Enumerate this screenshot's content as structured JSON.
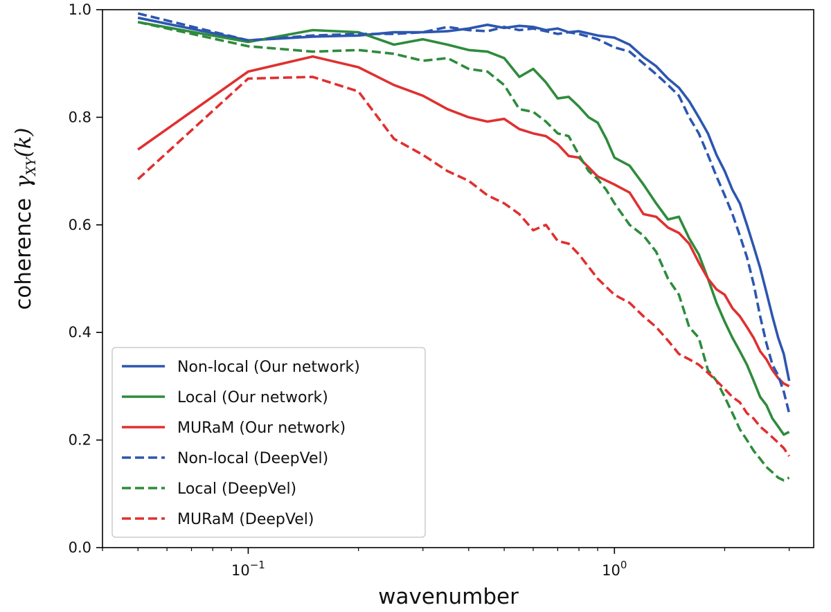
{
  "chart_data": {
    "type": "line",
    "xscale": "log",
    "xlabel": "wavenumber",
    "ylabel": "coherence",
    "ylabel_symbol": "γ",
    "ylabel_subscript": "XY",
    "ylabel_arg": "(k)",
    "xlim": [
      0.04,
      3.5
    ],
    "ylim": [
      0.0,
      1.0
    ],
    "y_ticks": [
      0.0,
      0.2,
      0.4,
      0.6,
      0.8,
      1.0
    ],
    "y_tick_labels": [
      "0.0",
      "0.2",
      "0.4",
      "0.6",
      "0.8",
      "1.0"
    ],
    "x_major_ticks": [
      {
        "value": 0.1,
        "base": "10",
        "exp": "−1"
      },
      {
        "value": 1,
        "base": "10",
        "exp": "0"
      }
    ],
    "x_minor_ticks": [
      0.04,
      0.05,
      0.06,
      0.07,
      0.08,
      0.09,
      0.2,
      0.3,
      0.4,
      0.5,
      0.6,
      0.7,
      0.8,
      0.9,
      2,
      3
    ],
    "legend_position": "lower-left",
    "series": [
      {
        "name": "Non-local (Our network)",
        "color": "#2c56b0",
        "dash": "solid",
        "x": [
          0.05,
          0.1,
          0.15,
          0.2,
          0.25,
          0.3,
          0.35,
          0.4,
          0.45,
          0.5,
          0.55,
          0.6,
          0.65,
          0.7,
          0.75,
          0.8,
          0.9,
          1.0,
          1.1,
          1.2,
          1.3,
          1.4,
          1.5,
          1.6,
          1.7,
          1.8,
          1.9,
          2.0,
          2.1,
          2.2,
          2.3,
          2.4,
          2.5,
          2.6,
          2.7,
          2.8,
          2.9,
          3.0
        ],
        "y": [
          0.985,
          0.943,
          0.95,
          0.952,
          0.958,
          0.958,
          0.96,
          0.965,
          0.972,
          0.966,
          0.97,
          0.968,
          0.962,
          0.965,
          0.958,
          0.96,
          0.952,
          0.948,
          0.935,
          0.912,
          0.895,
          0.872,
          0.855,
          0.83,
          0.8,
          0.77,
          0.73,
          0.7,
          0.665,
          0.64,
          0.6,
          0.56,
          0.52,
          0.475,
          0.43,
          0.39,
          0.36,
          0.31
        ]
      },
      {
        "name": "Local (Our network)",
        "color": "#2e8b3c",
        "dash": "solid",
        "x": [
          0.05,
          0.1,
          0.15,
          0.2,
          0.25,
          0.3,
          0.35,
          0.4,
          0.45,
          0.5,
          0.55,
          0.6,
          0.65,
          0.7,
          0.75,
          0.8,
          0.85,
          0.9,
          0.95,
          1.0,
          1.1,
          1.2,
          1.3,
          1.4,
          1.5,
          1.6,
          1.7,
          1.8,
          1.9,
          2.0,
          2.1,
          2.2,
          2.3,
          2.4,
          2.5,
          2.6,
          2.7,
          2.8,
          2.9,
          3.0
        ],
        "y": [
          0.977,
          0.94,
          0.962,
          0.958,
          0.935,
          0.945,
          0.935,
          0.925,
          0.922,
          0.91,
          0.875,
          0.89,
          0.865,
          0.835,
          0.838,
          0.82,
          0.8,
          0.79,
          0.76,
          0.725,
          0.71,
          0.675,
          0.64,
          0.61,
          0.615,
          0.575,
          0.545,
          0.5,
          0.455,
          0.42,
          0.39,
          0.365,
          0.34,
          0.31,
          0.28,
          0.265,
          0.24,
          0.225,
          0.21,
          0.215
        ]
      },
      {
        "name": "MURaM (Our network)",
        "color": "#e03030",
        "dash": "solid",
        "x": [
          0.05,
          0.1,
          0.15,
          0.2,
          0.25,
          0.3,
          0.35,
          0.4,
          0.45,
          0.5,
          0.55,
          0.6,
          0.65,
          0.7,
          0.75,
          0.8,
          0.9,
          1.0,
          1.1,
          1.2,
          1.3,
          1.4,
          1.5,
          1.6,
          1.7,
          1.8,
          1.9,
          2.0,
          2.1,
          2.2,
          2.3,
          2.4,
          2.5,
          2.6,
          2.7,
          2.8,
          2.9,
          3.0
        ],
        "y": [
          0.74,
          0.885,
          0.913,
          0.893,
          0.86,
          0.84,
          0.815,
          0.8,
          0.792,
          0.797,
          0.778,
          0.77,
          0.765,
          0.75,
          0.728,
          0.725,
          0.69,
          0.675,
          0.66,
          0.62,
          0.615,
          0.595,
          0.585,
          0.565,
          0.53,
          0.5,
          0.48,
          0.47,
          0.445,
          0.43,
          0.41,
          0.39,
          0.365,
          0.35,
          0.33,
          0.315,
          0.305,
          0.3
        ]
      },
      {
        "name": "Non-local (DeepVel)",
        "color": "#2c56b0",
        "dash": "dashed",
        "x": [
          0.05,
          0.1,
          0.15,
          0.2,
          0.25,
          0.3,
          0.35,
          0.4,
          0.45,
          0.5,
          0.55,
          0.6,
          0.65,
          0.7,
          0.75,
          0.8,
          0.9,
          1.0,
          1.1,
          1.2,
          1.3,
          1.4,
          1.5,
          1.6,
          1.7,
          1.8,
          1.9,
          2.0,
          2.1,
          2.2,
          2.3,
          2.4,
          2.5,
          2.6,
          2.7,
          2.8,
          2.9,
          3.0
        ],
        "y": [
          0.993,
          0.943,
          0.952,
          0.955,
          0.955,
          0.958,
          0.968,
          0.962,
          0.96,
          0.968,
          0.962,
          0.965,
          0.96,
          0.955,
          0.958,
          0.955,
          0.945,
          0.93,
          0.922,
          0.9,
          0.88,
          0.86,
          0.84,
          0.8,
          0.77,
          0.73,
          0.69,
          0.655,
          0.62,
          0.58,
          0.54,
          0.49,
          0.43,
          0.38,
          0.34,
          0.32,
          0.29,
          0.25
        ]
      },
      {
        "name": "Local (DeepVel)",
        "color": "#2e8b3c",
        "dash": "dashed",
        "x": [
          0.05,
          0.1,
          0.15,
          0.2,
          0.25,
          0.3,
          0.35,
          0.4,
          0.45,
          0.5,
          0.55,
          0.6,
          0.65,
          0.7,
          0.75,
          0.8,
          0.85,
          0.9,
          0.95,
          1.0,
          1.1,
          1.2,
          1.3,
          1.4,
          1.5,
          1.6,
          1.7,
          1.8,
          1.9,
          2.0,
          2.1,
          2.2,
          2.3,
          2.4,
          2.5,
          2.6,
          2.7,
          2.8,
          2.9,
          3.0
        ],
        "y": [
          0.977,
          0.932,
          0.922,
          0.925,
          0.918,
          0.905,
          0.91,
          0.89,
          0.885,
          0.86,
          0.815,
          0.81,
          0.792,
          0.77,
          0.765,
          0.73,
          0.7,
          0.685,
          0.665,
          0.64,
          0.6,
          0.58,
          0.55,
          0.5,
          0.47,
          0.41,
          0.39,
          0.33,
          0.31,
          0.28,
          0.25,
          0.22,
          0.2,
          0.18,
          0.165,
          0.15,
          0.14,
          0.13,
          0.125,
          0.13
        ]
      },
      {
        "name": "MURaM (DeepVel)",
        "color": "#e03030",
        "dash": "dashed",
        "x": [
          0.05,
          0.1,
          0.15,
          0.2,
          0.25,
          0.3,
          0.35,
          0.4,
          0.45,
          0.5,
          0.55,
          0.6,
          0.65,
          0.7,
          0.75,
          0.8,
          0.9,
          1.0,
          1.1,
          1.2,
          1.3,
          1.4,
          1.5,
          1.6,
          1.7,
          1.8,
          1.9,
          2.0,
          2.1,
          2.2,
          2.3,
          2.4,
          2.5,
          2.6,
          2.7,
          2.8,
          2.9,
          3.0
        ],
        "y": [
          0.685,
          0.872,
          0.875,
          0.848,
          0.76,
          0.73,
          0.7,
          0.682,
          0.655,
          0.64,
          0.62,
          0.59,
          0.6,
          0.57,
          0.565,
          0.545,
          0.5,
          0.47,
          0.455,
          0.43,
          0.41,
          0.385,
          0.36,
          0.35,
          0.34,
          0.325,
          0.31,
          0.295,
          0.28,
          0.27,
          0.25,
          0.24,
          0.225,
          0.215,
          0.205,
          0.195,
          0.185,
          0.17
        ]
      }
    ]
  }
}
